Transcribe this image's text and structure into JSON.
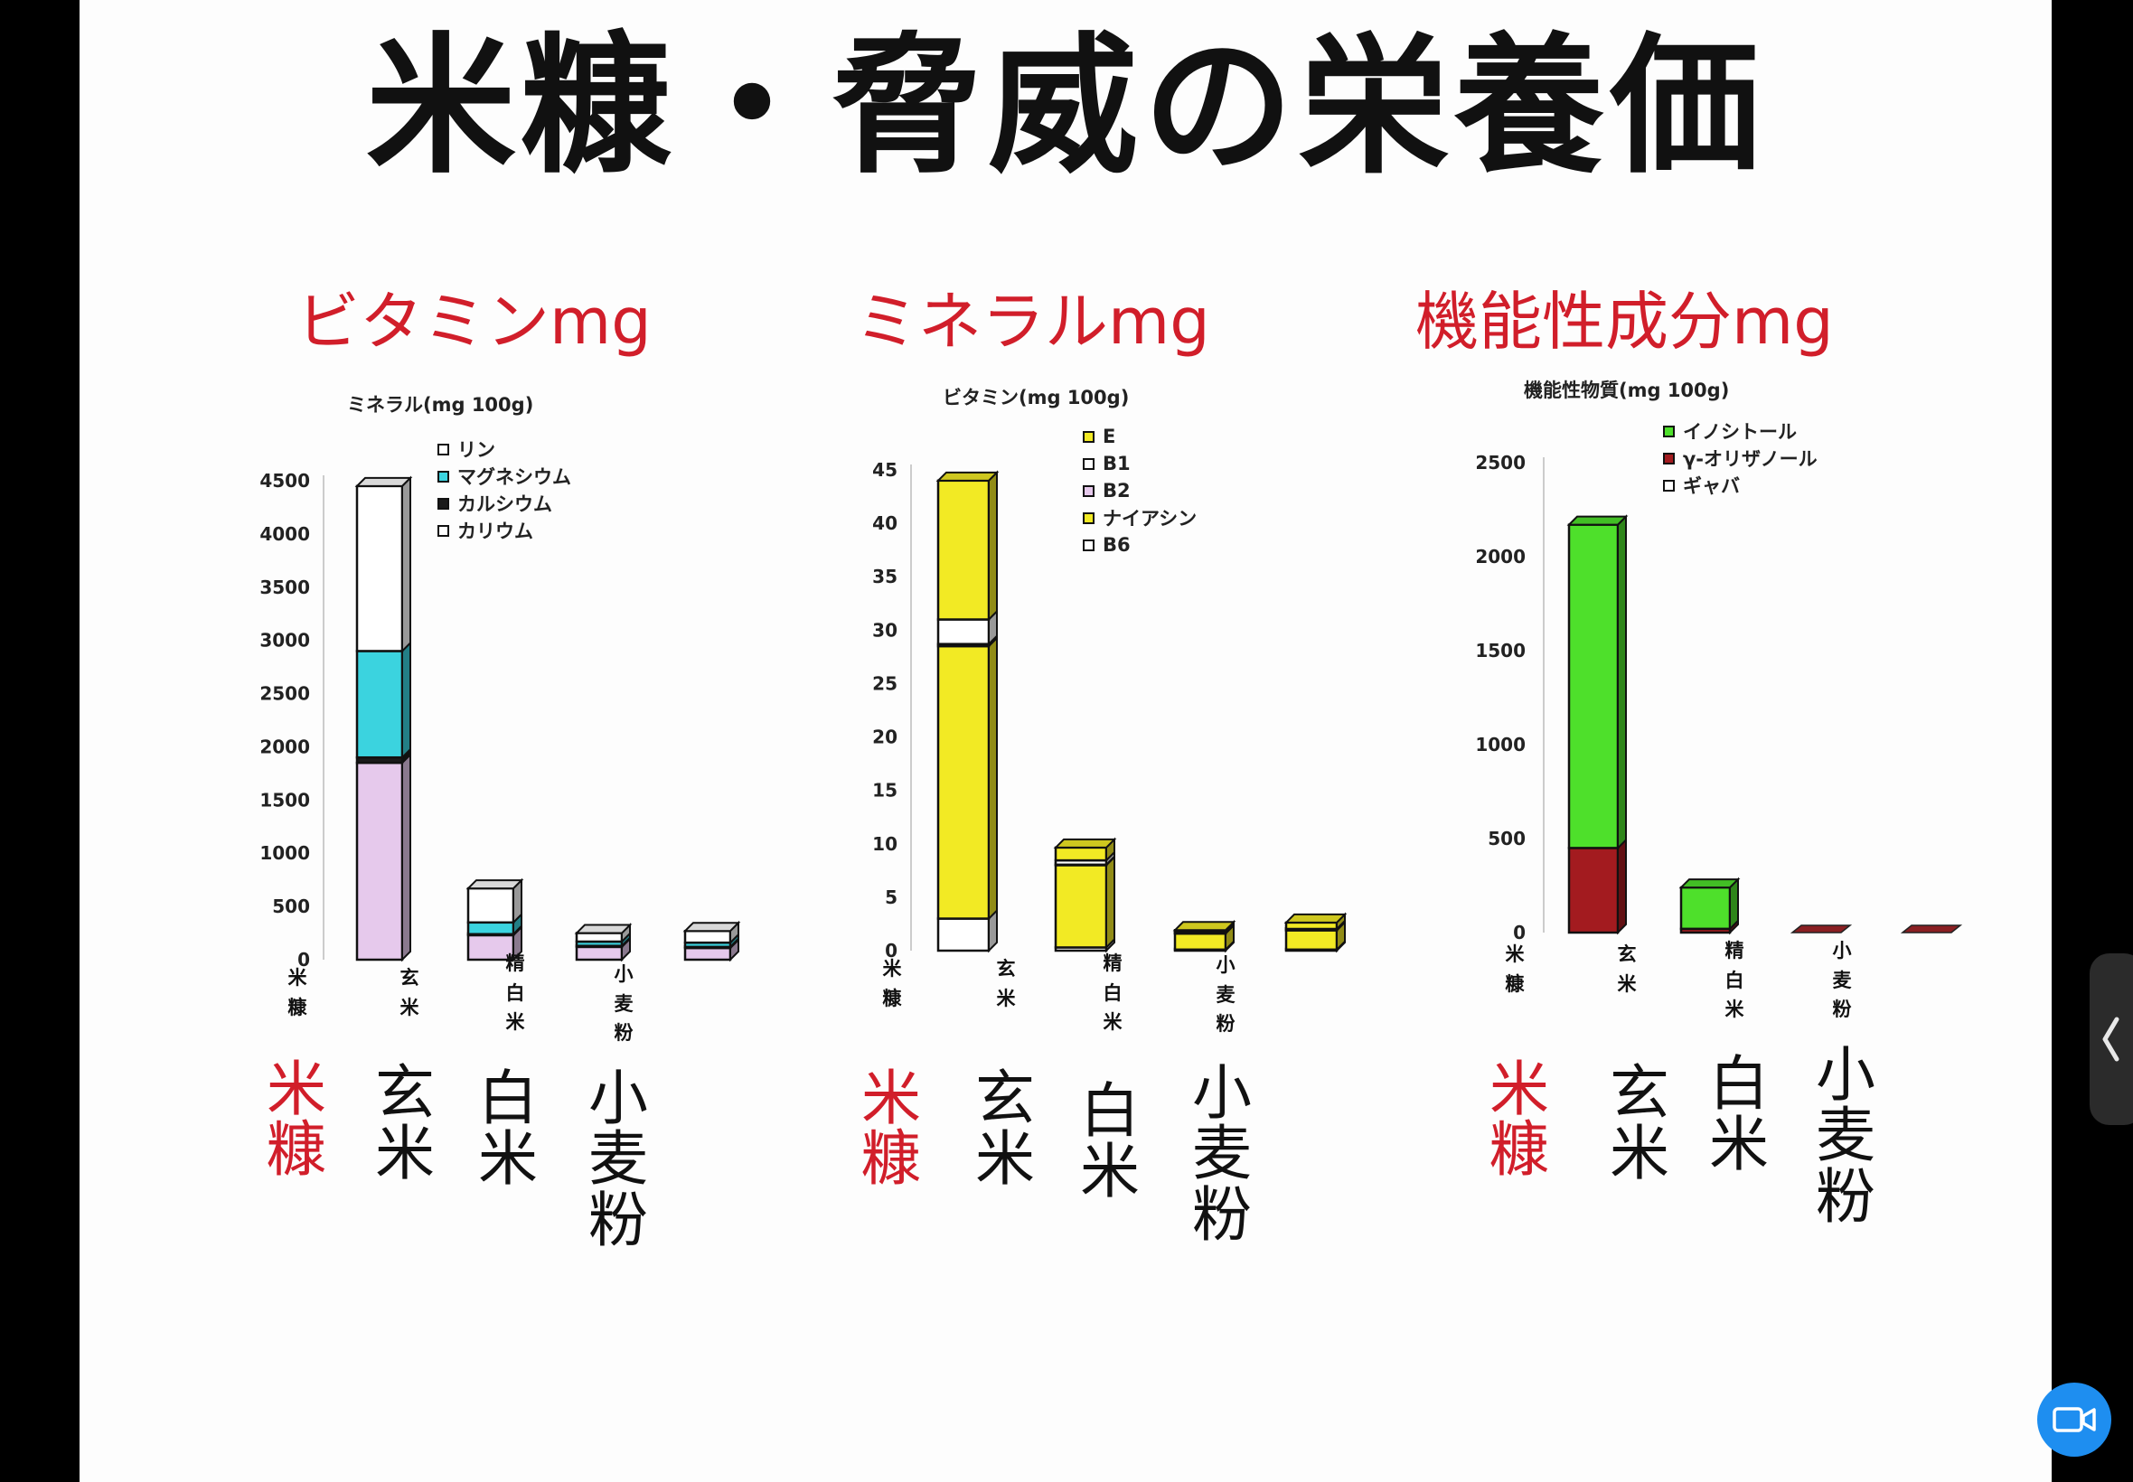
{
  "title": "米糠・脅威の栄養価",
  "chart_data": [
    {
      "type": "bar",
      "heading": "ビタミンmg",
      "title": "ミネラル(mg 100g)",
      "categories": [
        "米糠",
        "玄米",
        "精白米",
        "小麦粉"
      ],
      "big_labels": [
        "米糠",
        "玄米",
        "白米",
        "小麦粉"
      ],
      "ylim": [
        0,
        4500
      ],
      "yticks": [
        0,
        500,
        1000,
        1500,
        2000,
        2500,
        3000,
        3500,
        4000,
        4500
      ],
      "stacked": true,
      "legend": [
        "リン",
        "マグネシウム",
        "カルシウム",
        "カリウム"
      ],
      "series": [
        {
          "name": "カリウム",
          "color": "#e6c9ec",
          "values": [
            1850,
            230,
            120,
            110
          ]
        },
        {
          "name": "カルシウム",
          "color": "#1a1a1a",
          "values": [
            50,
            10,
            10,
            10
          ]
        },
        {
          "name": "マグネシウム",
          "color": "#3bd3df",
          "values": [
            1000,
            110,
            40,
            40
          ]
        },
        {
          "name": "リン",
          "color": "#ffffff",
          "values": [
            1550,
            320,
            80,
            110
          ]
        }
      ],
      "grid": false
    },
    {
      "type": "bar",
      "heading": "ミネラルmg",
      "title": "ビタミン(mg 100g)",
      "categories": [
        "米糠",
        "玄米",
        "精白米",
        "小麦粉"
      ],
      "big_labels": [
        "米糠",
        "玄米",
        "白米",
        "小麦粉"
      ],
      "ylim": [
        0,
        45
      ],
      "yticks": [
        0,
        5,
        10,
        15,
        20,
        25,
        30,
        35,
        40,
        45
      ],
      "stacked": true,
      "legend": [
        "E",
        "B1",
        "B2",
        "ナイアシン",
        "B6"
      ],
      "series": [
        {
          "name": "B6",
          "color": "#ffffff",
          "values": [
            3,
            0.3,
            0.1,
            0.1
          ]
        },
        {
          "name": "ナイアシン",
          "color": "#f2ea24",
          "values": [
            25.5,
            7.7,
            1.5,
            1.8
          ]
        },
        {
          "name": "B2",
          "color": "#e6c9ec",
          "values": [
            0.2,
            0.05,
            0.02,
            0.03
          ]
        },
        {
          "name": "B1",
          "color": "#ffffff",
          "values": [
            2.3,
            0.4,
            0.1,
            0.1
          ]
        },
        {
          "name": "E",
          "color": "#f2ea24",
          "values": [
            13,
            1.2,
            0.2,
            0.6
          ]
        }
      ],
      "grid": false
    },
    {
      "type": "bar",
      "heading": "機能性成分mg",
      "title": "機能性物質(mg 100g)",
      "categories": [
        "米糠",
        "玄米",
        "精白米",
        "小麦粉"
      ],
      "big_labels": [
        "米糠",
        "玄米",
        "白米",
        "小麦粉"
      ],
      "ylim": [
        0,
        2500
      ],
      "yticks": [
        0,
        500,
        1000,
        1500,
        2000,
        2500
      ],
      "stacked": true,
      "legend": [
        "イノシトール",
        "γ-オリザノール",
        "ギャバ"
      ],
      "series": [
        {
          "name": "γ-オリザノール",
          "color": "#a31b1f",
          "values": [
            450,
            20,
            0,
            0
          ]
        },
        {
          "name": "イノシトール",
          "color": "#4ee02b",
          "values": [
            1720,
            220,
            0,
            0
          ]
        },
        {
          "name": "ギャバ",
          "color": "#ffffff",
          "values": [
            0,
            0,
            0,
            0
          ]
        }
      ],
      "grid": false
    }
  ],
  "legend_colors": {
    "chart1": [
      "#ffffff",
      "#3bd3df",
      "#1a1a1a",
      "#ffffff"
    ],
    "chart2": [
      "#f2ea24",
      "#ffffff",
      "#e6c9ec",
      "#f2ea24",
      "#ffffff"
    ],
    "chart3": [
      "#4ee02b",
      "#a31b1f",
      "#ffffff"
    ]
  },
  "controls": {
    "side_tab_icon": "chevron-left-icon",
    "video_icon": "video-camera-icon"
  }
}
